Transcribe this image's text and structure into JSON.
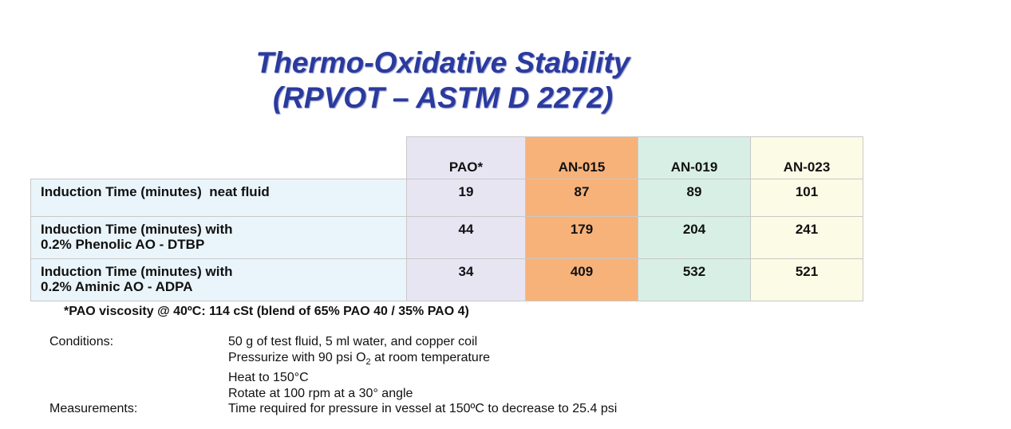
{
  "title": {
    "line1": "Thermo-Oxidative Stability",
    "line2": "(RPVOT – ASTM D 2272)"
  },
  "table": {
    "columns": [
      "PAO*",
      "AN-015",
      "AN-019",
      "AN-023"
    ],
    "column_colors": [
      "#e8e5f3",
      "#f7b27a",
      "#d8efe6",
      "#fbfbe6"
    ],
    "rows": [
      {
        "label_lines": [
          "Induction Time (minutes)  neat fluid"
        ],
        "values": [
          "19",
          "87",
          "89",
          "101"
        ]
      },
      {
        "label_lines": [
          "Induction Time (minutes) with",
          "0.2% Phenolic AO - DTBP"
        ],
        "values": [
          "44",
          "179",
          "204",
          "241"
        ]
      },
      {
        "label_lines": [
          "Induction Time (minutes) with",
          "0.2% Aminic AO - ADPA"
        ],
        "values": [
          "34",
          "409",
          "532",
          "521"
        ]
      }
    ]
  },
  "footnote": "*PAO viscosity @ 40ºC: 114 cSt (blend of 65% PAO 40 / 35% PAO 4)",
  "conditions": {
    "label": "Conditions:",
    "line1": "50 g of test fluid,  5 ml water, and copper coil",
    "line2_pre": "Pressurize with 90 psi O",
    "line2_sub": "2",
    "line2_post": " at room temperature",
    "line3": "Heat to 150°C",
    "line4": "Rotate at 100 rpm at a 30° angle"
  },
  "measurements": {
    "label": "Measurements:",
    "line1": "Time required for pressure in vessel at 150ºC to decrease to 25.4 psi"
  }
}
